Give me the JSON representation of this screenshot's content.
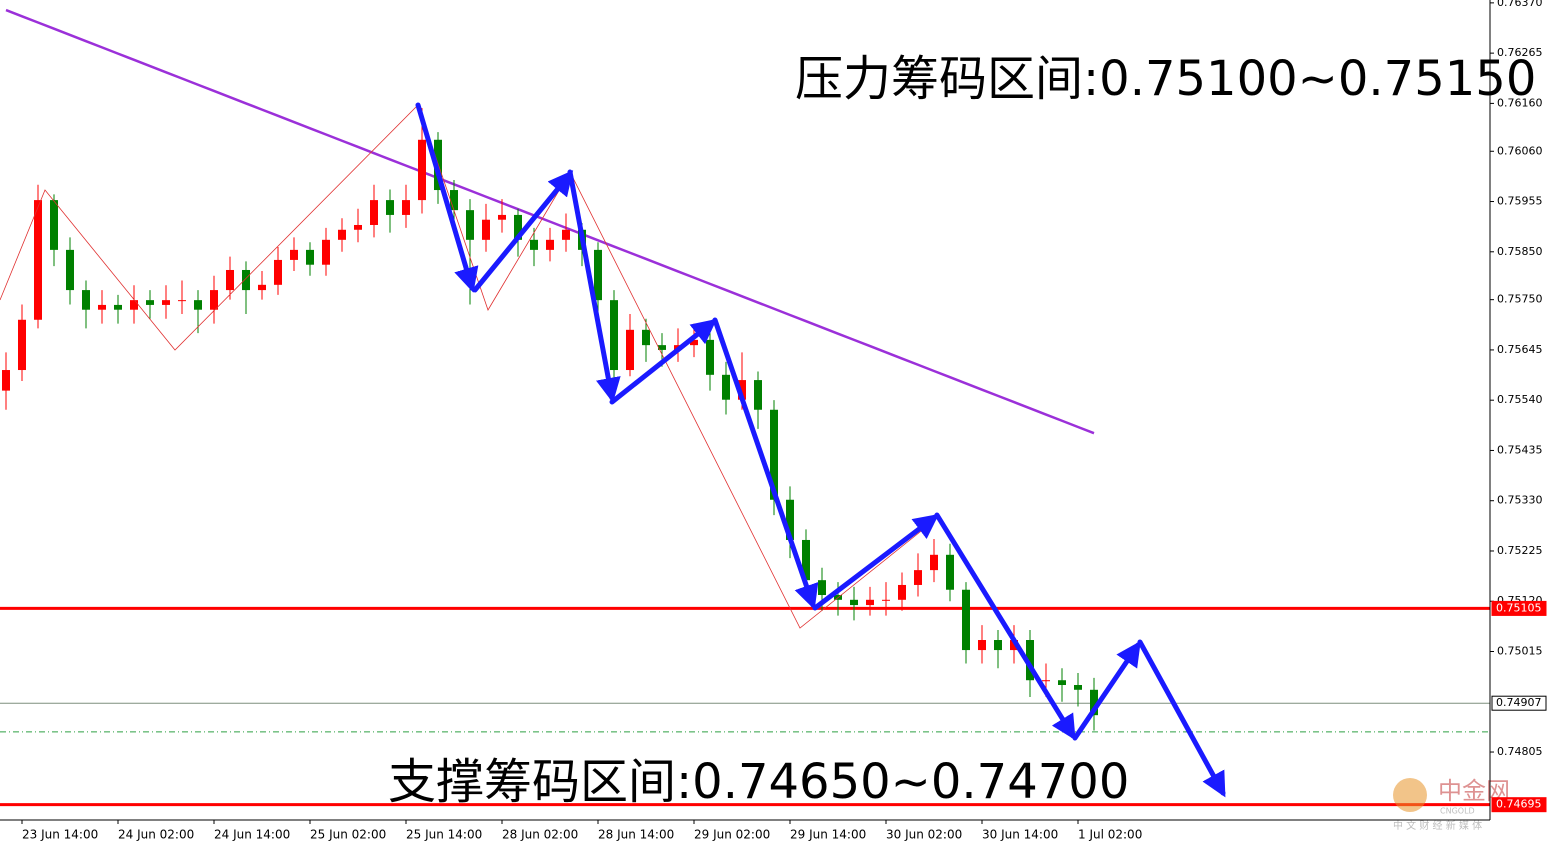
{
  "chart_data": {
    "type": "candlestick",
    "categories": [
      null,
      "23 Jun 14:00",
      null,
      null,
      null,
      null,
      null,
      "24 Jun 02:00",
      null,
      null,
      null,
      null,
      null,
      "24 Jun 14:00",
      null,
      null,
      null,
      null,
      null,
      "25 Jun 02:00",
      null,
      null,
      null,
      null,
      null,
      "25 Jun 14:00",
      null,
      null,
      null,
      null,
      null,
      "28 Jun 02:00",
      null,
      null,
      null,
      null,
      null,
      "28 Jun 14:00",
      null,
      null,
      null,
      null,
      null,
      "29 Jun 02:00",
      null,
      null,
      null,
      null,
      null,
      "29 Jun 14:00",
      null,
      null,
      null,
      null,
      null,
      "30 Jun 02:00",
      null,
      null,
      null,
      null,
      null,
      "30 Jun 14:00",
      null,
      null,
      null,
      null,
      null,
      "1 Jul 02:00",
      null
    ],
    "open": [
      0.7556,
      0.75603,
      0.75708,
      0.75958,
      0.75854,
      0.7577,
      0.75729,
      0.75739,
      0.75729,
      0.75749,
      0.75739,
      0.75749,
      0.75749,
      0.75729,
      0.7577,
      0.75812,
      0.7577,
      0.75781,
      0.75833,
      0.75854,
      0.75823,
      0.75875,
      0.75896,
      0.75906,
      0.75958,
      0.75927,
      0.75958,
      0.76084,
      0.75979,
      0.75937,
      0.75875,
      0.75917,
      0.75927,
      0.75875,
      0.75854,
      0.75875,
      0.75896,
      0.75854,
      0.75749,
      0.75603,
      0.75687,
      0.75655,
      0.75645,
      0.75655,
      0.75666,
      0.75593,
      0.75541,
      0.75582,
      0.7552,
      0.75332,
      0.75248,
      0.75164,
      0.75133,
      0.75123,
      0.75112,
      0.75123,
      0.75123,
      0.75154,
      0.75185,
      0.75217,
      0.75144,
      0.75018,
      0.75039,
      0.75018,
      0.75039,
      0.74955,
      0.74955,
      0.74945,
      0.74935
    ],
    "high": [
      0.7564,
      0.7574,
      0.7599,
      0.7597,
      0.7588,
      0.7579,
      0.7577,
      0.7576,
      0.7578,
      0.7577,
      0.7578,
      0.7579,
      0.7577,
      0.758,
      0.7584,
      0.7583,
      0.7581,
      0.7586,
      0.7588,
      0.7587,
      0.759,
      0.7592,
      0.7594,
      0.7599,
      0.7598,
      0.7599,
      0.7615,
      0.761,
      0.76,
      0.7596,
      0.7595,
      0.7596,
      0.7594,
      0.759,
      0.759,
      0.7593,
      0.7591,
      0.7587,
      0.7577,
      0.7572,
      0.7571,
      0.7568,
      0.7569,
      0.757,
      0.7568,
      0.7562,
      0.7564,
      0.756,
      0.7554,
      0.7536,
      0.7527,
      0.7519,
      0.7516,
      0.7515,
      0.7515,
      0.7516,
      0.7518,
      0.7522,
      0.7525,
      0.7524,
      0.7516,
      0.7507,
      0.7506,
      0.7507,
      0.7506,
      0.7499,
      0.7498,
      0.7497,
      0.7496
    ],
    "low": [
      0.7552,
      0.7558,
      0.7569,
      0.7582,
      0.7574,
      0.7569,
      0.757,
      0.757,
      0.757,
      0.7571,
      0.7571,
      0.7572,
      0.7568,
      0.757,
      0.7575,
      0.7572,
      0.7575,
      0.7576,
      0.7581,
      0.758,
      0.758,
      0.7585,
      0.7587,
      0.7588,
      0.7589,
      0.759,
      0.7593,
      0.7595,
      0.759,
      0.7574,
      0.7585,
      0.7589,
      0.7584,
      0.7582,
      0.7583,
      0.7585,
      0.7582,
      0.7572,
      0.7556,
      0.7559,
      0.7562,
      0.7561,
      0.7562,
      0.7563,
      0.7556,
      0.7551,
      0.7552,
      0.7548,
      0.753,
      0.7521,
      0.7513,
      0.751,
      0.7509,
      0.7508,
      0.7509,
      0.7509,
      0.751,
      0.7513,
      0.7516,
      0.7512,
      0.7499,
      0.7499,
      0.7498,
      0.7499,
      0.7492,
      0.7492,
      0.7491,
      0.749,
      0.7485
    ],
    "close": [
      0.75603,
      0.75708,
      0.75958,
      0.75854,
      0.7577,
      0.75729,
      0.75739,
      0.75729,
      0.75749,
      0.75739,
      0.75749,
      0.75749,
      0.75729,
      0.7577,
      0.75812,
      0.7577,
      0.75781,
      0.75833,
      0.75854,
      0.75823,
      0.75875,
      0.75896,
      0.75906,
      0.75958,
      0.75927,
      0.75958,
      0.76084,
      0.75979,
      0.75937,
      0.75875,
      0.75917,
      0.75927,
      0.75875,
      0.75854,
      0.75875,
      0.75896,
      0.75854,
      0.75749,
      0.75603,
      0.75687,
      0.75655,
      0.75645,
      0.75655,
      0.75666,
      0.75593,
      0.75541,
      0.75582,
      0.7552,
      0.75332,
      0.75248,
      0.75164,
      0.75133,
      0.75123,
      0.75112,
      0.75123,
      0.75123,
      0.75154,
      0.75185,
      0.75217,
      0.75144,
      0.75018,
      0.75039,
      0.75018,
      0.75039,
      0.74955,
      0.74955,
      0.74945,
      0.74935,
      0.74882
    ],
    "up_color": "#ff0000",
    "down_color": "#008000",
    "ylim": [
      0.74663,
      0.76376
    ],
    "yticks": [
      {
        "value": 0.7637,
        "label": "0.76370"
      },
      0.76265,
      {
        "value": 0.7616,
        "label": "0.76160"
      },
      {
        "value": 0.7606,
        "label": "0.76060"
      },
      0.75955,
      {
        "value": 0.7585,
        "label": "0.75850"
      },
      {
        "value": 0.7575,
        "label": "0.75750"
      },
      0.75645,
      {
        "value": 0.7554,
        "label": "0.75540"
      },
      0.75435,
      {
        "value": 0.7533,
        "label": "0.75330"
      },
      0.75225,
      {
        "value": 0.7512,
        "label": "0.75120"
      },
      0.75015,
      0.74805
    ],
    "overlays": [
      {
        "color": "#9b30d9",
        "values": [
          0.76355,
          0.76342,
          0.76329,
          0.76316,
          0.76303,
          0.7629,
          0.76277,
          0.76264,
          0.76251,
          0.76238,
          0.76225,
          0.76212,
          0.76199,
          0.76186,
          0.76173,
          0.7616,
          0.76147,
          0.76134,
          0.76121,
          0.76108,
          0.76095,
          0.76082,
          0.76069,
          0.76056,
          0.76043,
          0.7603,
          0.76017,
          0.76004,
          0.75991,
          0.75978,
          0.75965,
          0.75952,
          0.75939,
          0.75926,
          0.75913,
          0.759,
          0.75887,
          0.75874,
          0.75861,
          0.75848,
          0.75835,
          0.75822,
          0.75809,
          0.75796,
          0.75783,
          0.7577,
          0.75757,
          0.75744,
          0.75731,
          0.75718,
          0.75705,
          0.75692,
          0.75679,
          0.75666,
          0.75653,
          0.7564,
          0.75627,
          0.75614,
          0.75601,
          0.75588,
          0.75575,
          0.75562,
          0.75549,
          0.75536,
          0.75523,
          0.7551,
          0.75497,
          0.75484,
          0.75471
        ]
      }
    ],
    "levels": [
      {
        "value": 0.75105,
        "color": "#ff0000"
      },
      {
        "value": 0.74907,
        "color": "#7f8f7f"
      },
      {
        "value": 0.74695,
        "color": "#ff0000"
      }
    ],
    "ask_line": {
      "value": 0.74847,
      "color": "#2ea043"
    },
    "annotations": [
      "压力筹码区间:0.75100~0.75150",
      "支撑筹码区间:0.74650~0.74700"
    ],
    "watermark": {
      "title": "中金网",
      "subtitle": "CNGOLD",
      "tagline": "中 文 财 经 新 媒 体"
    }
  }
}
